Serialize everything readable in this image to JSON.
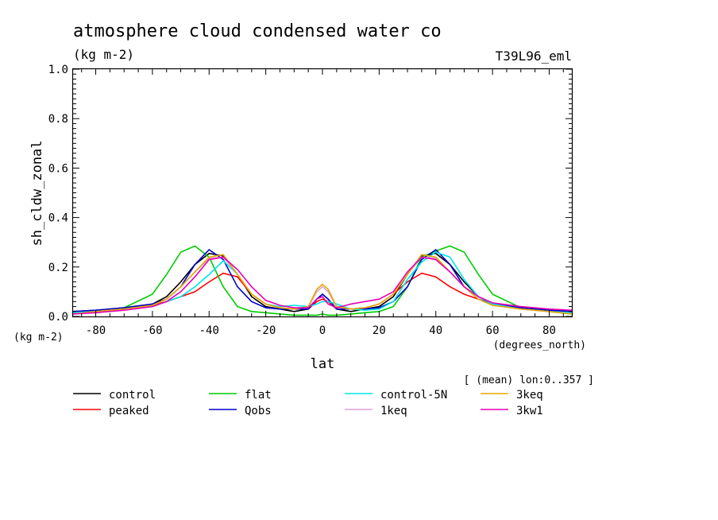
{
  "chart_data": {
    "type": "line",
    "title": "atmosphere cloud condensed water co",
    "subtitle_left": "(kg m-2)",
    "subtitle_right": "T39L96_eml",
    "ylabel": "sh_cldw_zonal",
    "xlabel": "lat",
    "y_unit": "(kg m-2)",
    "x_unit": "(degrees_north)",
    "averaging_note": "[ (mean) lon:0..357 ]",
    "xlim": [
      -88,
      88
    ],
    "ylim": [
      0,
      1
    ],
    "x_ticks": [
      -80,
      -60,
      -40,
      -20,
      0,
      20,
      40,
      60,
      80
    ],
    "x_tick_labels": [
      "-80",
      "-60",
      "-40",
      "-20",
      "0",
      "20",
      "40",
      "60",
      "80"
    ],
    "y_ticks": [
      0,
      0.2,
      0.4,
      0.6,
      0.8,
      1.0
    ],
    "y_tick_labels": [
      "0.0",
      "0.2",
      "0.4",
      "0.6",
      "0.8",
      "1.0"
    ],
    "grid": false,
    "x": [
      -88,
      -80,
      -70,
      -60,
      -55,
      -50,
      -45,
      -40,
      -35,
      -30,
      -25,
      -20,
      -15,
      -10,
      -5,
      -2,
      0,
      2,
      5,
      10,
      15,
      20,
      25,
      30,
      35,
      40,
      45,
      50,
      55,
      60,
      70,
      80,
      88
    ],
    "series": [
      {
        "name": "control",
        "color": "#000000",
        "values": [
          0.02,
          0.025,
          0.035,
          0.05,
          0.08,
          0.14,
          0.21,
          0.255,
          0.245,
          0.17,
          0.08,
          0.04,
          0.03,
          0.02,
          0.03,
          0.07,
          0.09,
          0.07,
          0.03,
          0.02,
          0.03,
          0.04,
          0.08,
          0.17,
          0.245,
          0.255,
          0.21,
          0.14,
          0.08,
          0.05,
          0.035,
          0.025,
          0.02
        ]
      },
      {
        "name": "peaked",
        "color": "#ff0000",
        "values": [
          0.015,
          0.02,
          0.03,
          0.045,
          0.06,
          0.08,
          0.1,
          0.14,
          0.175,
          0.16,
          0.09,
          0.05,
          0.035,
          0.03,
          0.03,
          0.06,
          0.07,
          0.06,
          0.03,
          0.03,
          0.035,
          0.05,
          0.09,
          0.14,
          0.175,
          0.16,
          0.12,
          0.09,
          0.07,
          0.05,
          0.035,
          0.02,
          0.015
        ]
      },
      {
        "name": "flat",
        "color": "#00cc00",
        "values": [
          0.01,
          0.02,
          0.035,
          0.09,
          0.17,
          0.26,
          0.285,
          0.24,
          0.12,
          0.04,
          0.02,
          0.015,
          0.01,
          0.005,
          0.005,
          0.005,
          0.01,
          0.005,
          0.005,
          0.01,
          0.015,
          0.02,
          0.04,
          0.12,
          0.24,
          0.265,
          0.285,
          0.26,
          0.17,
          0.09,
          0.035,
          0.02,
          0.01
        ]
      },
      {
        "name": "Qobs",
        "color": "#0000cc",
        "values": [
          0.02,
          0.025,
          0.035,
          0.05,
          0.07,
          0.12,
          0.21,
          0.27,
          0.23,
          0.12,
          0.06,
          0.035,
          0.03,
          0.03,
          0.03,
          0.07,
          0.09,
          0.07,
          0.03,
          0.03,
          0.03,
          0.035,
          0.06,
          0.12,
          0.23,
          0.27,
          0.21,
          0.12,
          0.07,
          0.05,
          0.035,
          0.025,
          0.02
        ]
      },
      {
        "name": "control-5N",
        "color": "#00e5ee",
        "values": [
          0.015,
          0.02,
          0.03,
          0.04,
          0.06,
          0.08,
          0.12,
          0.17,
          0.225,
          0.17,
          0.09,
          0.05,
          0.04,
          0.045,
          0.04,
          0.05,
          0.06,
          0.06,
          0.05,
          0.03,
          0.025,
          0.03,
          0.06,
          0.15,
          0.22,
          0.26,
          0.24,
          0.15,
          0.08,
          0.05,
          0.03,
          0.02,
          0.015
        ]
      },
      {
        "name": "1keq",
        "color": "#dda0dd",
        "values": [
          0.01,
          0.02,
          0.03,
          0.045,
          0.07,
          0.12,
          0.18,
          0.235,
          0.24,
          0.17,
          0.09,
          0.05,
          0.035,
          0.03,
          0.04,
          0.1,
          0.12,
          0.1,
          0.04,
          0.03,
          0.035,
          0.05,
          0.09,
          0.17,
          0.24,
          0.235,
          0.18,
          0.12,
          0.07,
          0.045,
          0.03,
          0.02,
          0.01
        ]
      },
      {
        "name": "3keq",
        "color": "#e6a800",
        "values": [
          0.01,
          0.02,
          0.03,
          0.045,
          0.07,
          0.12,
          0.18,
          0.24,
          0.25,
          0.17,
          0.09,
          0.05,
          0.035,
          0.03,
          0.04,
          0.11,
          0.13,
          0.11,
          0.04,
          0.03,
          0.035,
          0.05,
          0.09,
          0.17,
          0.25,
          0.24,
          0.18,
          0.12,
          0.07,
          0.045,
          0.03,
          0.02,
          0.01
        ]
      },
      {
        "name": "3kw1",
        "color": "#e600b8",
        "values": [
          0.01,
          0.015,
          0.025,
          0.04,
          0.06,
          0.1,
          0.16,
          0.23,
          0.24,
          0.19,
          0.12,
          0.065,
          0.045,
          0.035,
          0.035,
          0.07,
          0.08,
          0.05,
          0.035,
          0.05,
          0.06,
          0.07,
          0.1,
          0.18,
          0.24,
          0.23,
          0.18,
          0.12,
          0.08,
          0.055,
          0.04,
          0.03,
          0.025
        ]
      }
    ]
  }
}
